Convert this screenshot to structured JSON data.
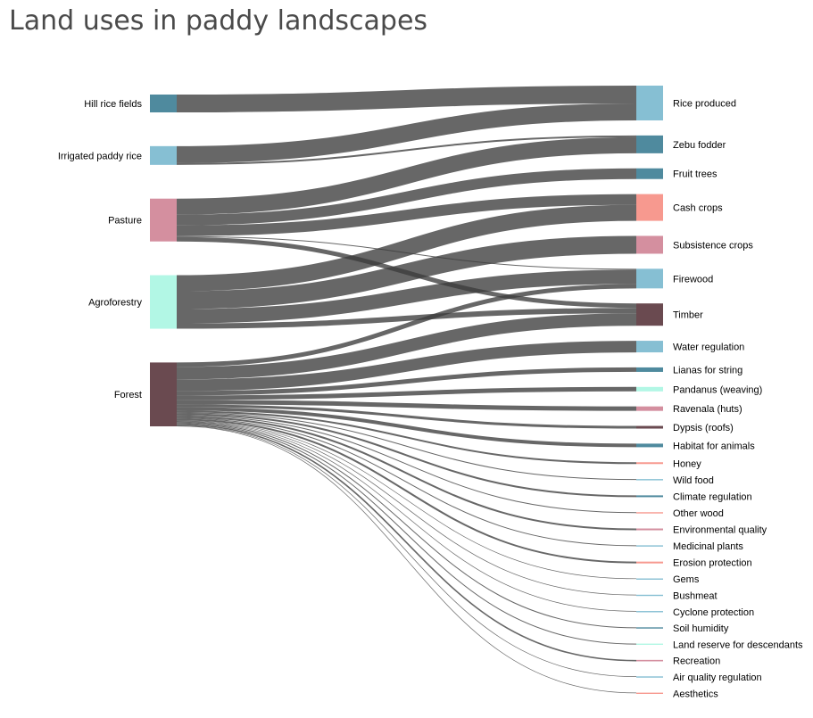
{
  "chart_data": {
    "type": "sankey",
    "title": "Land uses in paddy landscapes",
    "nodes": [
      {
        "name": "Hill rice fields",
        "color": "#4f8a9e",
        "side": "left"
      },
      {
        "name": "Irrigated paddy rice",
        "color": "#86bfd3",
        "side": "left"
      },
      {
        "name": "Pasture",
        "color": "#d48f9f",
        "side": "left"
      },
      {
        "name": "Agroforestry",
        "color": "#b2f7e5",
        "side": "left"
      },
      {
        "name": "Forest",
        "color": "#6a4a50",
        "side": "left"
      },
      {
        "name": "Rice produced",
        "color": "#86bfd3",
        "side": "right"
      },
      {
        "name": "Zebu fodder",
        "color": "#4f8a9e",
        "side": "right"
      },
      {
        "name": "Fruit trees",
        "color": "#4f8a9e",
        "side": "right"
      },
      {
        "name": "Cash crops",
        "color": "#f7998f",
        "side": "right"
      },
      {
        "name": "Subsistence crops",
        "color": "#d48f9f",
        "side": "right"
      },
      {
        "name": "Firewood",
        "color": "#86bfd3",
        "side": "right"
      },
      {
        "name": "Timber",
        "color": "#6a4a50",
        "side": "right"
      },
      {
        "name": "Water regulation",
        "color": "#86bfd3",
        "side": "right"
      },
      {
        "name": "Lianas for string",
        "color": "#4f8a9e",
        "side": "right"
      },
      {
        "name": "Pandanus (weaving)",
        "color": "#b2f7e5",
        "side": "right"
      },
      {
        "name": "Ravenala (huts)",
        "color": "#d48f9f",
        "side": "right"
      },
      {
        "name": "Dypsis (roofs)",
        "color": "#6a4a50",
        "side": "right"
      },
      {
        "name": "Habitat for animals",
        "color": "#4f8a9e",
        "side": "right"
      },
      {
        "name": "Honey",
        "color": "#f7998f",
        "side": "right"
      },
      {
        "name": "Wild food",
        "color": "#86bfd3",
        "side": "right"
      },
      {
        "name": "Climate regulation",
        "color": "#4f8a9e",
        "side": "right"
      },
      {
        "name": "Other wood",
        "color": "#f7998f",
        "side": "right"
      },
      {
        "name": "Environmental quality",
        "color": "#d48f9f",
        "side": "right"
      },
      {
        "name": "Medicinal plants",
        "color": "#86bfd3",
        "side": "right"
      },
      {
        "name": "Erosion protection",
        "color": "#f7998f",
        "side": "right"
      },
      {
        "name": "Gems",
        "color": "#86bfd3",
        "side": "right"
      },
      {
        "name": "Bushmeat",
        "color": "#86bfd3",
        "side": "right"
      },
      {
        "name": "Cyclone protection",
        "color": "#86bfd3",
        "side": "right"
      },
      {
        "name": "Soil humidity",
        "color": "#4f8a9e",
        "side": "right"
      },
      {
        "name": "Land reserve for descendants",
        "color": "#b2f7e5",
        "side": "right"
      },
      {
        "name": "Recreation",
        "color": "#d48f9f",
        "side": "right"
      },
      {
        "name": "Air quality regulation",
        "color": "#86bfd3",
        "side": "right"
      },
      {
        "name": "Aesthetics",
        "color": "#f7998f",
        "side": "right"
      }
    ],
    "links": [
      {
        "source": "Hill rice fields",
        "target": "Rice produced",
        "value": 10
      },
      {
        "source": "Irrigated paddy rice",
        "target": "Rice produced",
        "value": 9.5
      },
      {
        "source": "Irrigated paddy rice",
        "target": "Zebu fodder",
        "value": 1
      },
      {
        "source": "Pasture",
        "target": "Zebu fodder",
        "value": 9
      },
      {
        "source": "Pasture",
        "target": "Fruit trees",
        "value": 6
      },
      {
        "source": "Pasture",
        "target": "Cash crops",
        "value": 6
      },
      {
        "source": "Pasture",
        "target": "Timber",
        "value": 2.5
      },
      {
        "source": "Pasture",
        "target": "Firewood",
        "value": 0.5
      },
      {
        "source": "Agroforestry",
        "target": "Cash crops",
        "value": 9
      },
      {
        "source": "Agroforestry",
        "target": "Subsistence crops",
        "value": 10
      },
      {
        "source": "Agroforestry",
        "target": "Firewood",
        "value": 8
      },
      {
        "source": "Agroforestry",
        "target": "Timber",
        "value": 3
      },
      {
        "source": "Forest",
        "target": "Firewood",
        "value": 2.5
      },
      {
        "source": "Forest",
        "target": "Timber",
        "value": 7
      },
      {
        "source": "Forest",
        "target": "Water regulation",
        "value": 6.5
      },
      {
        "source": "Forest",
        "target": "Lianas for string",
        "value": 2.5
      },
      {
        "source": "Forest",
        "target": "Pandanus (weaving)",
        "value": 2.5
      },
      {
        "source": "Forest",
        "target": "Ravenala (huts)",
        "value": 2.5
      },
      {
        "source": "Forest",
        "target": "Dypsis (roofs)",
        "value": 1.5
      },
      {
        "source": "Forest",
        "target": "Habitat for animals",
        "value": 2
      },
      {
        "source": "Forest",
        "target": "Honey",
        "value": 1
      },
      {
        "source": "Forest",
        "target": "Wild food",
        "value": 0.5
      },
      {
        "source": "Forest",
        "target": "Climate regulation",
        "value": 1
      },
      {
        "source": "Forest",
        "target": "Other wood",
        "value": 0.5
      },
      {
        "source": "Forest",
        "target": "Environmental quality",
        "value": 1
      },
      {
        "source": "Forest",
        "target": "Medicinal plants",
        "value": 0.5
      },
      {
        "source": "Forest",
        "target": "Erosion protection",
        "value": 1
      },
      {
        "source": "Forest",
        "target": "Gems",
        "value": 0.3
      },
      {
        "source": "Forest",
        "target": "Bushmeat",
        "value": 0.3
      },
      {
        "source": "Forest",
        "target": "Cyclone protection",
        "value": 0.3
      },
      {
        "source": "Forest",
        "target": "Soil humidity",
        "value": 0.5
      },
      {
        "source": "Forest",
        "target": "Land reserve for descendants",
        "value": 0.5
      },
      {
        "source": "Forest",
        "target": "Recreation",
        "value": 0.8
      },
      {
        "source": "Forest",
        "target": "Air quality regulation",
        "value": 0.3
      },
      {
        "source": "Forest",
        "target": "Aesthetics",
        "value": 0.3
      }
    ],
    "link_color": "#3c3c3c"
  }
}
